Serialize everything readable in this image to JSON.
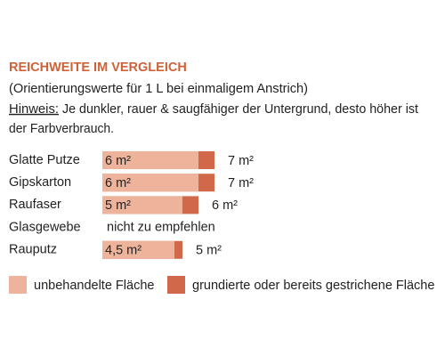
{
  "chart_data": {
    "type": "bar",
    "orientation": "horizontal",
    "title": "REICHWEITE IM VERGLEICH",
    "subtitle": "(Orientierungswerte für 1 L bei einmaligem Anstrich)",
    "note_label": "Hinweis:",
    "note_lines": [
      "Je dunkler, rauer & saugfähiger der Untergrund, desto höher ist",
      "der Farbverbrauch."
    ],
    "categories": [
      "Glatte Putze",
      "Gipskarton",
      "Raufaser",
      "Glasgewebe",
      "Rauputz"
    ],
    "annotation": "nicht zu empfehlen",
    "series": [
      {
        "name": "unbehandelte Fläche",
        "color": "#eeb49b",
        "values": [
          6,
          6,
          5,
          null,
          4.5
        ],
        "value_labels": [
          "6 m²",
          "6 m²",
          "5 m²",
          null,
          "4,5 m²"
        ]
      },
      {
        "name": "grundierte oder bereits gestrichene Fläche",
        "color": "#d2684a",
        "values": [
          7,
          7,
          6,
          null,
          5
        ],
        "value_labels": [
          "7 m²",
          "7 m²",
          "6 m²",
          null,
          "5 m²"
        ]
      }
    ]
  }
}
